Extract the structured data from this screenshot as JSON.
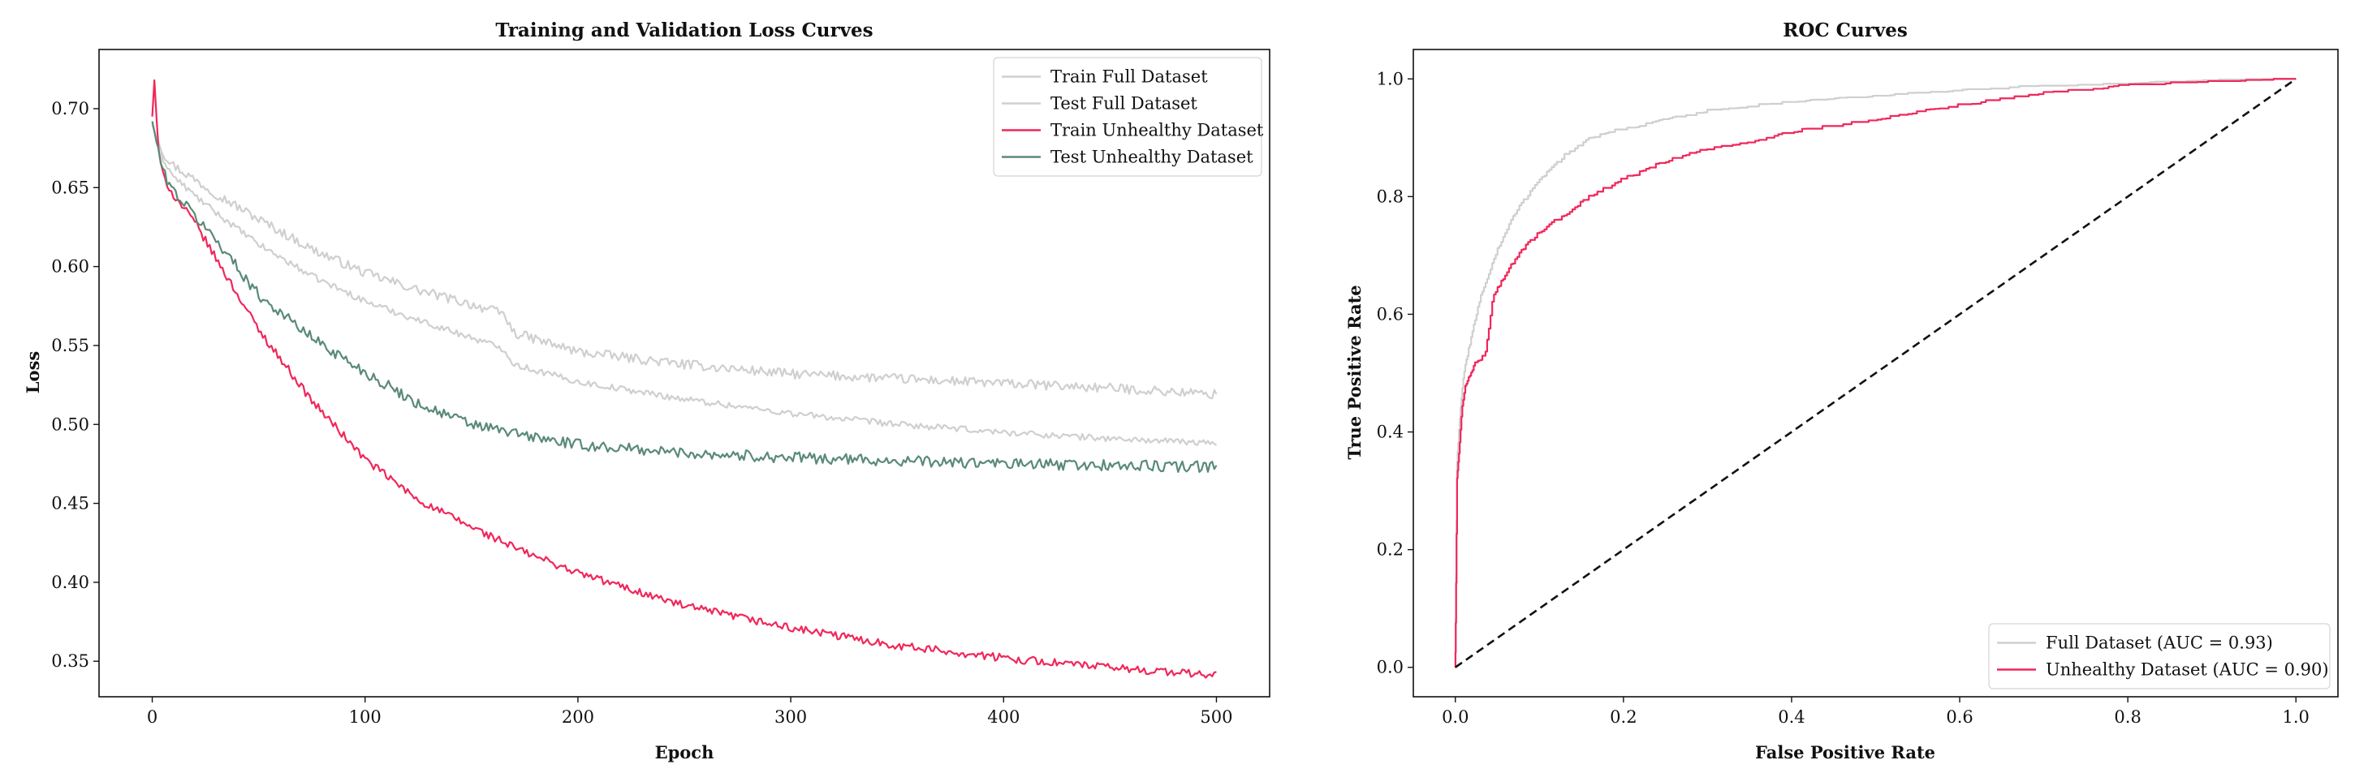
{
  "chart_data": [
    {
      "type": "line",
      "title": "Training and Validation Loss Curves",
      "xlabel": "Epoch",
      "ylabel": "Loss",
      "xlim": [
        -25,
        525
      ],
      "ylim": [
        0.3275,
        0.7375
      ],
      "xticks": [
        0,
        100,
        200,
        300,
        400,
        500
      ],
      "yticks": [
        0.35,
        0.4,
        0.45,
        0.5,
        0.55,
        0.6,
        0.65,
        0.7
      ],
      "legend_position": "top-right",
      "grid": false,
      "series": [
        {
          "name": "Train Full Dataset",
          "color": "#cfcfcf",
          "noise": 0.003,
          "x": [
            0,
            5,
            10,
            20,
            30,
            50,
            75,
            100,
            125,
            150,
            165,
            170,
            200,
            250,
            300,
            350,
            400,
            450,
            500
          ],
          "y": [
            0.69,
            0.672,
            0.664,
            0.655,
            0.646,
            0.63,
            0.611,
            0.596,
            0.585,
            0.576,
            0.57,
            0.558,
            0.546,
            0.538,
            0.532,
            0.529,
            0.526,
            0.523,
            0.519
          ]
        },
        {
          "name": "Test Full Dataset",
          "color": "#cfcfcf",
          "noise": 0.002,
          "x": [
            0,
            5,
            10,
            20,
            30,
            50,
            75,
            100,
            125,
            150,
            165,
            170,
            200,
            250,
            300,
            350,
            400,
            450,
            500
          ],
          "y": [
            0.69,
            0.668,
            0.657,
            0.645,
            0.634,
            0.614,
            0.594,
            0.578,
            0.566,
            0.555,
            0.548,
            0.538,
            0.527,
            0.516,
            0.507,
            0.5,
            0.495,
            0.491,
            0.488
          ]
        },
        {
          "name": "Train Unhealthy Dataset",
          "color": "#f0275a",
          "noise": 0.0025,
          "x": [
            0,
            1,
            3,
            5,
            10,
            20,
            30,
            50,
            75,
            100,
            125,
            150,
            175,
            200,
            250,
            300,
            350,
            400,
            450,
            500
          ],
          "y": [
            0.695,
            0.718,
            0.672,
            0.658,
            0.645,
            0.628,
            0.605,
            0.56,
            0.515,
            0.478,
            0.452,
            0.435,
            0.419,
            0.406,
            0.385,
            0.371,
            0.36,
            0.352,
            0.346,
            0.341
          ]
        },
        {
          "name": "Test Unhealthy Dataset",
          "color": "#5a8a78",
          "noise": 0.0035,
          "x": [
            0,
            5,
            10,
            20,
            30,
            50,
            75,
            100,
            125,
            150,
            175,
            200,
            250,
            300,
            350,
            400,
            450,
            500
          ],
          "y": [
            0.692,
            0.66,
            0.648,
            0.632,
            0.617,
            0.582,
            0.555,
            0.533,
            0.513,
            0.5,
            0.493,
            0.487,
            0.482,
            0.479,
            0.477,
            0.475,
            0.474,
            0.473
          ]
        }
      ]
    },
    {
      "type": "line",
      "title": "ROC Curves",
      "xlabel": "False Positive Rate",
      "ylabel": "True Positive Rate",
      "xlim": [
        -0.05,
        1.05
      ],
      "ylim": [
        -0.05,
        1.05
      ],
      "xticks": [
        0.0,
        0.2,
        0.4,
        0.6,
        0.8,
        1.0
      ],
      "yticks": [
        0.0,
        0.2,
        0.4,
        0.6,
        0.8,
        1.0
      ],
      "legend_position": "lower-right",
      "grid": false,
      "series": [
        {
          "name": "Full Dataset (AUC = 0.93)",
          "color": "#cfcfcf",
          "x": [
            0,
            0.002,
            0.005,
            0.01,
            0.02,
            0.03,
            0.05,
            0.07,
            0.1,
            0.13,
            0.16,
            0.2,
            0.25,
            0.3,
            0.4,
            0.5,
            0.6,
            0.7,
            0.8,
            0.9,
            1.0
          ],
          "y": [
            0,
            0.35,
            0.42,
            0.5,
            0.57,
            0.63,
            0.71,
            0.77,
            0.83,
            0.87,
            0.9,
            0.915,
            0.93,
            0.945,
            0.96,
            0.97,
            0.98,
            0.987,
            0.992,
            0.996,
            1.0
          ]
        },
        {
          "name": "Unhealthy Dataset (AUC = 0.90)",
          "color": "#f0275a",
          "x": [
            0,
            0.002,
            0.004,
            0.006,
            0.008,
            0.012,
            0.018,
            0.025,
            0.035,
            0.045,
            0.06,
            0.08,
            0.1,
            0.13,
            0.16,
            0.2,
            0.25,
            0.3,
            0.35,
            0.4,
            0.5,
            0.6,
            0.7,
            0.8,
            0.9,
            1.0
          ],
          "y": [
            0,
            0.32,
            0.36,
            0.4,
            0.44,
            0.48,
            0.5,
            0.52,
            0.53,
            0.63,
            0.67,
            0.71,
            0.74,
            0.77,
            0.8,
            0.83,
            0.86,
            0.88,
            0.89,
            0.91,
            0.93,
            0.955,
            0.975,
            0.988,
            0.996,
            1.0
          ]
        },
        {
          "name": "",
          "color": "#111111",
          "dashed": true,
          "x": [
            0,
            1
          ],
          "y": [
            0,
            1
          ]
        }
      ]
    }
  ]
}
